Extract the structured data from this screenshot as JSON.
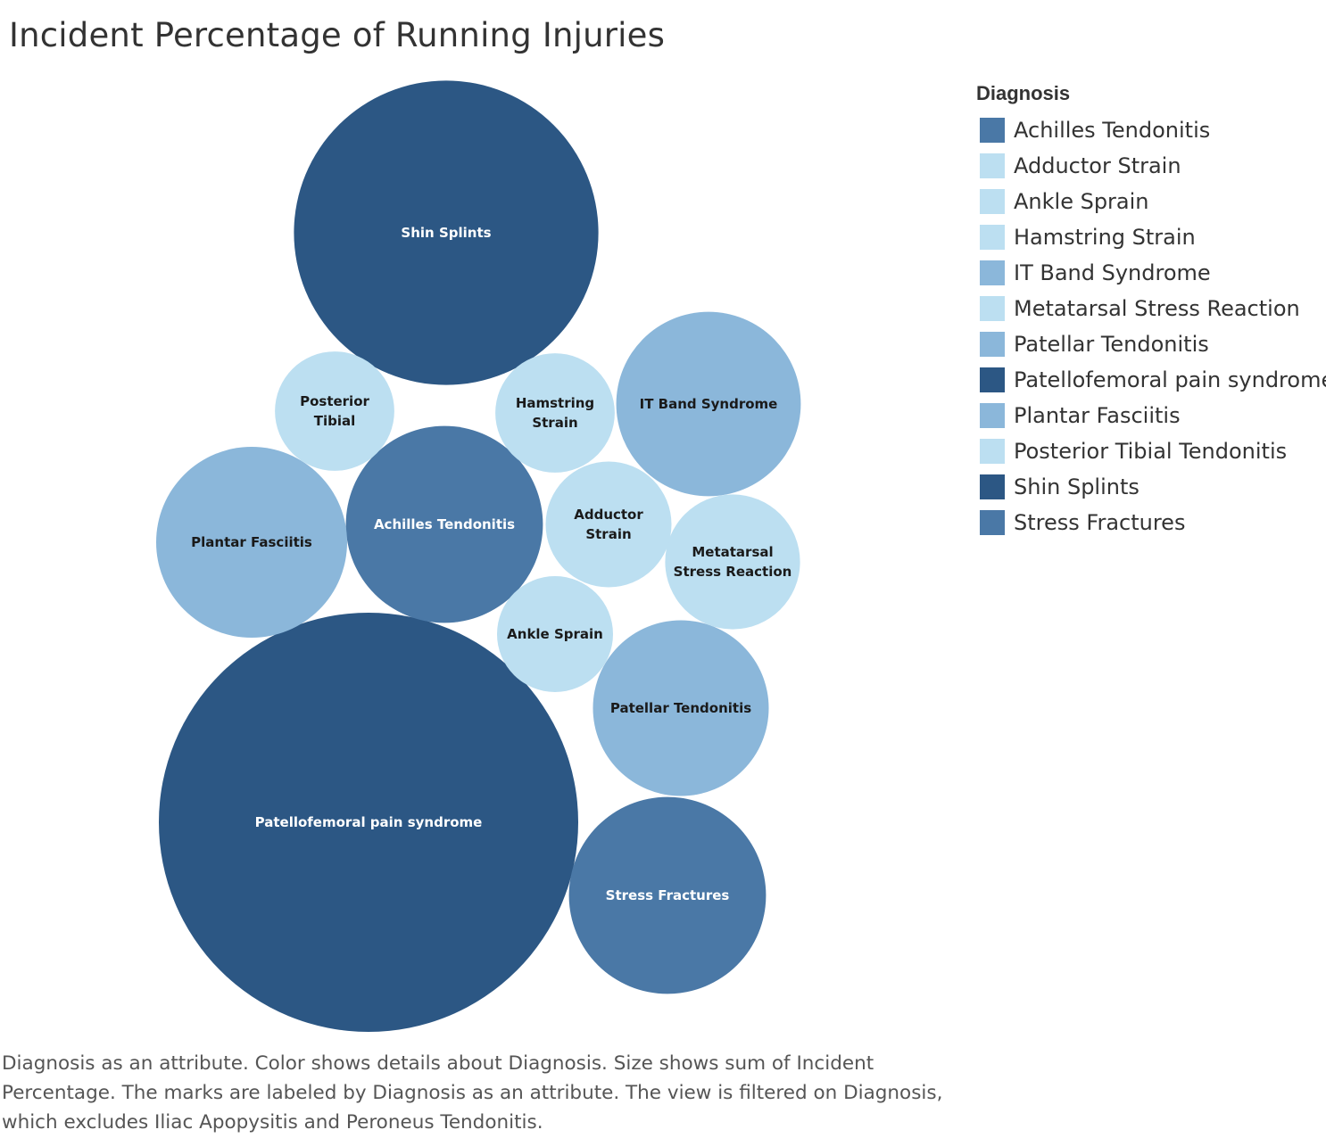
{
  "title": "Incident Percentage of Running Injuries",
  "legend": {
    "title": "Diagnosis",
    "items": [
      {
        "label": "Achilles Tendonitis",
        "color": "#4a78a6"
      },
      {
        "label": "Adductor Strain",
        "color": "#bcdff1"
      },
      {
        "label": "Ankle Sprain",
        "color": "#bcdff1"
      },
      {
        "label": "Hamstring Strain",
        "color": "#bcdff1"
      },
      {
        "label": "IT Band Syndrome",
        "color": "#8bb7da"
      },
      {
        "label": "Metatarsal Stress Reaction",
        "color": "#bcdff1"
      },
      {
        "label": "Patellar Tendonitis",
        "color": "#8bb7da"
      },
      {
        "label": "Patellofemoral pain syndrome",
        "color": "#2c5784"
      },
      {
        "label": "Plantar Fasciitis",
        "color": "#8bb7da"
      },
      {
        "label": "Posterior Tibial Tendonitis",
        "color": "#bcdff1"
      },
      {
        "label": "Shin Splints",
        "color": "#2c5784"
      },
      {
        "label": "Stress Fractures",
        "color": "#4a78a6"
      }
    ]
  },
  "caption": "Diagnosis as an attribute.  Color shows details about Diagnosis.  Size shows sum of Incident Percentage.  The marks are labeled by Diagnosis as an attribute. The view is filtered on Diagnosis, which excludes Iliac Apopysitis and Peroneus Tendonitis.",
  "chart_data": {
    "type": "bubble",
    "series": [
      {
        "name": "Patellofemoral pain syndrome",
        "label_lines": [
          "Patellofemoral pain syndrome"
        ],
        "value": 22.2,
        "color": "#2c5784"
      },
      {
        "name": "Shin Splints",
        "label_lines": [
          "Shin Splints"
        ],
        "value": 11.7,
        "color": "#2c5784"
      },
      {
        "name": "Achilles Tendonitis",
        "label_lines": [
          "Achilles Tendonitis"
        ],
        "value": 4.9,
        "color": "#4a78a6"
      },
      {
        "name": "Stress Fractures",
        "label_lines": [
          "Stress Fractures"
        ],
        "value": 4.9,
        "color": "#4a78a6"
      },
      {
        "name": "Plantar Fasciitis",
        "label_lines": [
          "Plantar Fasciitis"
        ],
        "value": 4.6,
        "color": "#8bb7da"
      },
      {
        "name": "IT Band Syndrome",
        "label_lines": [
          "IT Band Syndrome"
        ],
        "value": 4.3,
        "color": "#8bb7da"
      },
      {
        "name": "Patellar Tendonitis",
        "label_lines": [
          "Patellar Tendonitis"
        ],
        "value": 3.9,
        "color": "#8bb7da"
      },
      {
        "name": "Metatarsal Stress Reaction",
        "label_lines": [
          "Metatarsal",
          "Stress Reaction"
        ],
        "value": 2.3,
        "color": "#bcdff1"
      },
      {
        "name": "Adductor Strain",
        "label_lines": [
          "Adductor",
          "Strain"
        ],
        "value": 2.0,
        "color": "#bcdff1"
      },
      {
        "name": "Posterior Tibial Tendonitis",
        "label_lines": [
          "Posterior",
          "Tibial"
        ],
        "value": 1.8,
        "color": "#bcdff1"
      },
      {
        "name": "Hamstring Strain",
        "label_lines": [
          "Hamstring",
          "Strain"
        ],
        "value": 1.8,
        "color": "#bcdff1"
      },
      {
        "name": "Ankle Sprain",
        "label_lines": [
          "Ankle Sprain"
        ],
        "value": 1.7,
        "color": "#bcdff1"
      }
    ]
  }
}
